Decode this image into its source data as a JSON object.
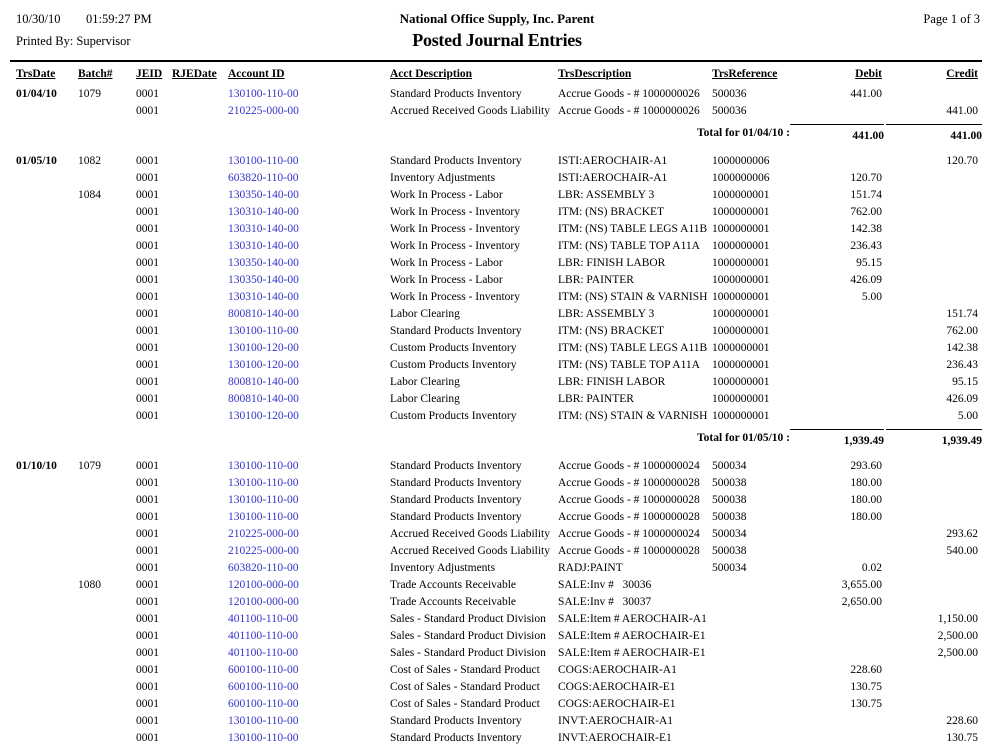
{
  "colors": {
    "account_link": "#3333cc"
  },
  "report": {
    "date": "10/30/10",
    "time": "01:59:27 PM",
    "printed_by": "Printed By: Supervisor",
    "company": "National Office Supply, Inc. Parent",
    "title": "Posted Journal Entries",
    "page_info": "Page 1 of 3"
  },
  "table": {
    "columns": {
      "trsdate": "TrsDate",
      "batch": "Batch#",
      "jeid": "JEID",
      "rjedate": "RJEDate",
      "account": "Account ID",
      "acct_desc": "Acct Description",
      "trs_desc": "TrsDescription",
      "trs_ref": "TrsReference",
      "debit": "Debit",
      "credit": "Credit"
    },
    "sections": [
      {
        "rows": [
          {
            "date": "01/04/10",
            "batch": "1079",
            "jeid": "0001",
            "rjedate": "",
            "account": "130100-110-00",
            "acct_desc": "Standard Products Inventory",
            "trs_desc": "Accrue Goods - # 1000000026",
            "trs_ref": "500036",
            "debit": "441.00",
            "credit": ""
          },
          {
            "date": "",
            "batch": "",
            "jeid": "0001",
            "rjedate": "",
            "account": "210225-000-00",
            "acct_desc": "Accrued Received Goods Liability",
            "trs_desc": "Accrue Goods - # 1000000026",
            "trs_ref": "500036",
            "debit": "",
            "credit": "441.00"
          }
        ],
        "total": {
          "label": "Total for 01/04/10 :",
          "debit": "441.00",
          "credit": "441.00"
        }
      },
      {
        "rows": [
          {
            "date": "01/05/10",
            "batch": "1082",
            "jeid": "0001",
            "rjedate": "",
            "account": "130100-110-00",
            "acct_desc": "Standard Products Inventory",
            "trs_desc": "ISTI:AEROCHAIR-A1",
            "trs_ref": "1000000006",
            "debit": "",
            "credit": "120.70"
          },
          {
            "date": "",
            "batch": "",
            "jeid": "0001",
            "rjedate": "",
            "account": "603820-110-00",
            "acct_desc": "Inventory Adjustments",
            "trs_desc": "ISTI:AEROCHAIR-A1",
            "trs_ref": "1000000006",
            "debit": "120.70",
            "credit": ""
          },
          {
            "date": "",
            "batch": "1084",
            "jeid": "0001",
            "rjedate": "",
            "account": "130350-140-00",
            "acct_desc": "Work In Process - Labor",
            "trs_desc": "LBR: ASSEMBLY 3",
            "trs_ref": "1000000001",
            "debit": "151.74",
            "credit": ""
          },
          {
            "date": "",
            "batch": "",
            "jeid": "0001",
            "rjedate": "",
            "account": "130310-140-00",
            "acct_desc": "Work In Process - Inventory",
            "trs_desc": "ITM: (NS) BRACKET",
            "trs_ref": "1000000001",
            "debit": "762.00",
            "credit": ""
          },
          {
            "date": "",
            "batch": "",
            "jeid": "0001",
            "rjedate": "",
            "account": "130310-140-00",
            "acct_desc": "Work In Process - Inventory",
            "trs_desc": "ITM: (NS) TABLE LEGS A11B",
            "trs_ref": "1000000001",
            "debit": "142.38",
            "credit": ""
          },
          {
            "date": "",
            "batch": "",
            "jeid": "0001",
            "rjedate": "",
            "account": "130310-140-00",
            "acct_desc": "Work In Process - Inventory",
            "trs_desc": "ITM: (NS) TABLE TOP A11A",
            "trs_ref": "1000000001",
            "debit": "236.43",
            "credit": ""
          },
          {
            "date": "",
            "batch": "",
            "jeid": "0001",
            "rjedate": "",
            "account": "130350-140-00",
            "acct_desc": "Work In Process - Labor",
            "trs_desc": "LBR: FINISH LABOR",
            "trs_ref": "1000000001",
            "debit": "95.15",
            "credit": ""
          },
          {
            "date": "",
            "batch": "",
            "jeid": "0001",
            "rjedate": "",
            "account": "130350-140-00",
            "acct_desc": "Work In Process - Labor",
            "trs_desc": "LBR: PAINTER",
            "trs_ref": "1000000001",
            "debit": "426.09",
            "credit": ""
          },
          {
            "date": "",
            "batch": "",
            "jeid": "0001",
            "rjedate": "",
            "account": "130310-140-00",
            "acct_desc": "Work In Process - Inventory",
            "trs_desc": "ITM: (NS) STAIN & VARNISH",
            "trs_ref": "1000000001",
            "debit": "5.00",
            "credit": ""
          },
          {
            "date": "",
            "batch": "",
            "jeid": "0001",
            "rjedate": "",
            "account": "800810-140-00",
            "acct_desc": "Labor Clearing",
            "trs_desc": "LBR: ASSEMBLY 3",
            "trs_ref": "1000000001",
            "debit": "",
            "credit": "151.74"
          },
          {
            "date": "",
            "batch": "",
            "jeid": "0001",
            "rjedate": "",
            "account": "130100-110-00",
            "acct_desc": "Standard Products Inventory",
            "trs_desc": "ITM: (NS) BRACKET",
            "trs_ref": "1000000001",
            "debit": "",
            "credit": "762.00"
          },
          {
            "date": "",
            "batch": "",
            "jeid": "0001",
            "rjedate": "",
            "account": "130100-120-00",
            "acct_desc": "Custom Products Inventory",
            "trs_desc": "ITM: (NS) TABLE LEGS A11B",
            "trs_ref": "1000000001",
            "debit": "",
            "credit": "142.38"
          },
          {
            "date": "",
            "batch": "",
            "jeid": "0001",
            "rjedate": "",
            "account": "130100-120-00",
            "acct_desc": "Custom Products Inventory",
            "trs_desc": "ITM: (NS) TABLE TOP A11A",
            "trs_ref": "1000000001",
            "debit": "",
            "credit": "236.43"
          },
          {
            "date": "",
            "batch": "",
            "jeid": "0001",
            "rjedate": "",
            "account": "800810-140-00",
            "acct_desc": "Labor Clearing",
            "trs_desc": "LBR: FINISH LABOR",
            "trs_ref": "1000000001",
            "debit": "",
            "credit": "95.15"
          },
          {
            "date": "",
            "batch": "",
            "jeid": "0001",
            "rjedate": "",
            "account": "800810-140-00",
            "acct_desc": "Labor Clearing",
            "trs_desc": "LBR: PAINTER",
            "trs_ref": "1000000001",
            "debit": "",
            "credit": "426.09"
          },
          {
            "date": "",
            "batch": "",
            "jeid": "0001",
            "rjedate": "",
            "account": "130100-120-00",
            "acct_desc": "Custom Products Inventory",
            "trs_desc": "ITM: (NS) STAIN & VARNISH",
            "trs_ref": "1000000001",
            "debit": "",
            "credit": "5.00"
          }
        ],
        "total": {
          "label": "Total for 01/05/10 :",
          "debit": "1,939.49",
          "credit": "1,939.49"
        }
      },
      {
        "rows": [
          {
            "date": "01/10/10",
            "batch": "1079",
            "jeid": "0001",
            "rjedate": "",
            "account": "130100-110-00",
            "acct_desc": "Standard Products Inventory",
            "trs_desc": "Accrue Goods - # 1000000024",
            "trs_ref": "500034",
            "debit": "293.60",
            "credit": ""
          },
          {
            "date": "",
            "batch": "",
            "jeid": "0001",
            "rjedate": "",
            "account": "130100-110-00",
            "acct_desc": "Standard Products Inventory",
            "trs_desc": "Accrue Goods - # 1000000028",
            "trs_ref": "500038",
            "debit": "180.00",
            "credit": ""
          },
          {
            "date": "",
            "batch": "",
            "jeid": "0001",
            "rjedate": "",
            "account": "130100-110-00",
            "acct_desc": "Standard Products Inventory",
            "trs_desc": "Accrue Goods - # 1000000028",
            "trs_ref": "500038",
            "debit": "180.00",
            "credit": ""
          },
          {
            "date": "",
            "batch": "",
            "jeid": "0001",
            "rjedate": "",
            "account": "130100-110-00",
            "acct_desc": "Standard Products Inventory",
            "trs_desc": "Accrue Goods - # 1000000028",
            "trs_ref": "500038",
            "debit": "180.00",
            "credit": ""
          },
          {
            "date": "",
            "batch": "",
            "jeid": "0001",
            "rjedate": "",
            "account": "210225-000-00",
            "acct_desc": "Accrued Received Goods Liability",
            "trs_desc": "Accrue Goods - # 1000000024",
            "trs_ref": "500034",
            "debit": "",
            "credit": "293.62"
          },
          {
            "date": "",
            "batch": "",
            "jeid": "0001",
            "rjedate": "",
            "account": "210225-000-00",
            "acct_desc": "Accrued Received Goods Liability",
            "trs_desc": "Accrue Goods - # 1000000028",
            "trs_ref": "500038",
            "debit": "",
            "credit": "540.00"
          },
          {
            "date": "",
            "batch": "",
            "jeid": "0001",
            "rjedate": "",
            "account": "603820-110-00",
            "acct_desc": "Inventory Adjustments",
            "trs_desc": "RADJ:PAINT",
            "trs_ref": "500034",
            "debit": "0.02",
            "credit": ""
          },
          {
            "date": "",
            "batch": "1080",
            "jeid": "0001",
            "rjedate": "",
            "account": "120100-000-00",
            "acct_desc": "Trade Accounts Receivable",
            "trs_desc": "SALE:Inv #   30036",
            "trs_ref": "",
            "debit": "3,655.00",
            "credit": ""
          },
          {
            "date": "",
            "batch": "",
            "jeid": "0001",
            "rjedate": "",
            "account": "120100-000-00",
            "acct_desc": "Trade Accounts Receivable",
            "trs_desc": "SALE:Inv #   30037",
            "trs_ref": "",
            "debit": "2,650.00",
            "credit": ""
          },
          {
            "date": "",
            "batch": "",
            "jeid": "0001",
            "rjedate": "",
            "account": "401100-110-00",
            "acct_desc": "Sales - Standard Product Division",
            "trs_desc": "SALE:Item # AEROCHAIR-A1",
            "trs_ref": "",
            "debit": "",
            "credit": "1,150.00"
          },
          {
            "date": "",
            "batch": "",
            "jeid": "0001",
            "rjedate": "",
            "account": "401100-110-00",
            "acct_desc": "Sales - Standard Product Division",
            "trs_desc": "SALE:Item # AEROCHAIR-E1",
            "trs_ref": "",
            "debit": "",
            "credit": "2,500.00"
          },
          {
            "date": "",
            "batch": "",
            "jeid": "0001",
            "rjedate": "",
            "account": "401100-110-00",
            "acct_desc": "Sales - Standard Product Division",
            "trs_desc": "SALE:Item # AEROCHAIR-E1",
            "trs_ref": "",
            "debit": "",
            "credit": "2,500.00"
          },
          {
            "date": "",
            "batch": "",
            "jeid": "0001",
            "rjedate": "",
            "account": "600100-110-00",
            "acct_desc": "Cost of Sales - Standard Product",
            "trs_desc": "COGS:AEROCHAIR-A1",
            "trs_ref": "",
            "debit": "228.60",
            "credit": ""
          },
          {
            "date": "",
            "batch": "",
            "jeid": "0001",
            "rjedate": "",
            "account": "600100-110-00",
            "acct_desc": "Cost of Sales - Standard Product",
            "trs_desc": "COGS:AEROCHAIR-E1",
            "trs_ref": "",
            "debit": "130.75",
            "credit": ""
          },
          {
            "date": "",
            "batch": "",
            "jeid": "0001",
            "rjedate": "",
            "account": "600100-110-00",
            "acct_desc": "Cost of Sales - Standard Product",
            "trs_desc": "COGS:AEROCHAIR-E1",
            "trs_ref": "",
            "debit": "130.75",
            "credit": ""
          },
          {
            "date": "",
            "batch": "",
            "jeid": "0001",
            "rjedate": "",
            "account": "130100-110-00",
            "acct_desc": "Standard Products Inventory",
            "trs_desc": "INVT:AEROCHAIR-A1",
            "trs_ref": "",
            "debit": "",
            "credit": "228.60"
          },
          {
            "date": "",
            "batch": "",
            "jeid": "0001",
            "rjedate": "",
            "account": "130100-110-00",
            "acct_desc": "Standard Products Inventory",
            "trs_desc": "INVT:AEROCHAIR-E1",
            "trs_ref": "",
            "debit": "",
            "credit": "130.75"
          }
        ],
        "total": null
      }
    ]
  }
}
